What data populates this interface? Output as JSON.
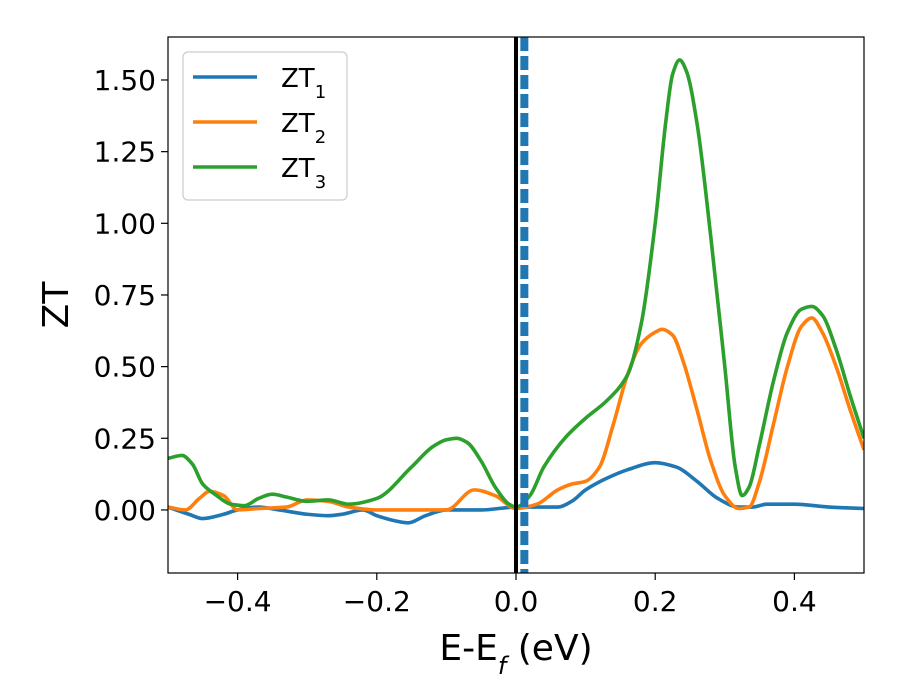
{
  "chart_data": {
    "type": "line",
    "title": "",
    "xlabel": {
      "main": "E-E",
      "sub": "f",
      "suffix": " (eV)"
    },
    "ylabel": "ZT",
    "xlim": [
      -0.5,
      0.5
    ],
    "ylim": [
      -0.22,
      1.65
    ],
    "xticks": [
      -0.4,
      -0.2,
      0.0,
      0.2,
      0.4
    ],
    "xtick_labels": [
      "−0.4",
      "−0.2",
      "0.0",
      "0.2",
      "0.4"
    ],
    "yticks": [
      0.0,
      0.25,
      0.5,
      0.75,
      1.0,
      1.25,
      1.5
    ],
    "ytick_labels": [
      "0.00",
      "0.25",
      "0.50",
      "0.75",
      "1.00",
      "1.25",
      "1.50"
    ],
    "grid": false,
    "legend_position": "top-left",
    "vertical_lines": [
      {
        "x": 0.0,
        "color": "#000000",
        "style": "solid"
      },
      {
        "x": 0.012,
        "color": "#1f77b4",
        "style": "dashed"
      }
    ],
    "series": [
      {
        "name": "ZT",
        "name_sub": "1",
        "color": "#1f77b4",
        "x": [
          -0.5,
          -0.47,
          -0.45,
          -0.42,
          -0.4,
          -0.37,
          -0.34,
          -0.3,
          -0.27,
          -0.25,
          -0.22,
          -0.2,
          -0.17,
          -0.155,
          -0.13,
          -0.1,
          -0.05,
          0.0,
          0.03,
          0.06,
          0.08,
          0.1,
          0.13,
          0.16,
          0.2,
          0.23,
          0.26,
          0.29,
          0.32,
          0.34,
          0.36,
          0.4,
          0.45,
          0.5
        ],
        "y": [
          0.01,
          -0.015,
          -0.03,
          -0.015,
          0.0,
          0.01,
          0.0,
          -0.015,
          -0.02,
          -0.015,
          0.0,
          -0.02,
          -0.04,
          -0.045,
          -0.02,
          0.0,
          0.0,
          0.01,
          0.01,
          0.01,
          0.03,
          0.07,
          0.11,
          0.14,
          0.165,
          0.15,
          0.1,
          0.04,
          0.01,
          0.01,
          0.02,
          0.02,
          0.01,
          0.005
        ]
      },
      {
        "name": "ZT",
        "name_sub": "2",
        "color": "#ff7f0e",
        "x": [
          -0.5,
          -0.475,
          -0.455,
          -0.44,
          -0.42,
          -0.4,
          -0.37,
          -0.33,
          -0.3,
          -0.27,
          -0.24,
          -0.2,
          -0.15,
          -0.1,
          -0.06,
          -0.03,
          0.0,
          0.03,
          0.06,
          0.08,
          0.1,
          0.12,
          0.14,
          0.16,
          0.18,
          0.2,
          0.21,
          0.225,
          0.24,
          0.26,
          0.28,
          0.3,
          0.32,
          0.335,
          0.35,
          0.37,
          0.39,
          0.41,
          0.425,
          0.44,
          0.46,
          0.48,
          0.5
        ],
        "y": [
          0.01,
          0.0,
          0.04,
          0.065,
          0.05,
          0.0,
          0.005,
          0.01,
          0.035,
          0.03,
          0.01,
          0.0,
          0.0,
          0.0,
          0.07,
          0.05,
          0.005,
          0.02,
          0.07,
          0.09,
          0.1,
          0.15,
          0.3,
          0.47,
          0.58,
          0.62,
          0.63,
          0.61,
          0.52,
          0.35,
          0.17,
          0.05,
          0.005,
          0.01,
          0.1,
          0.3,
          0.5,
          0.64,
          0.67,
          0.62,
          0.5,
          0.35,
          0.21
        ]
      },
      {
        "name": "ZT",
        "name_sub": "3",
        "color": "#2ca02c",
        "x": [
          -0.5,
          -0.48,
          -0.465,
          -0.45,
          -0.43,
          -0.41,
          -0.39,
          -0.37,
          -0.35,
          -0.33,
          -0.3,
          -0.27,
          -0.24,
          -0.2,
          -0.15,
          -0.12,
          -0.1,
          -0.085,
          -0.07,
          -0.05,
          -0.03,
          -0.01,
          0.0,
          0.02,
          0.04,
          0.07,
          0.1,
          0.13,
          0.16,
          0.18,
          0.2,
          0.215,
          0.225,
          0.235,
          0.245,
          0.26,
          0.28,
          0.3,
          0.315,
          0.325,
          0.335,
          0.35,
          0.37,
          0.39,
          0.41,
          0.425,
          0.44,
          0.46,
          0.48,
          0.5
        ],
        "y": [
          0.18,
          0.19,
          0.16,
          0.09,
          0.05,
          0.02,
          0.015,
          0.04,
          0.055,
          0.045,
          0.03,
          0.035,
          0.02,
          0.04,
          0.15,
          0.22,
          0.245,
          0.25,
          0.235,
          0.17,
          0.08,
          0.02,
          0.01,
          0.05,
          0.15,
          0.25,
          0.32,
          0.38,
          0.47,
          0.65,
          1.0,
          1.35,
          1.52,
          1.57,
          1.53,
          1.35,
          0.95,
          0.5,
          0.15,
          0.05,
          0.08,
          0.23,
          0.45,
          0.62,
          0.7,
          0.71,
          0.68,
          0.56,
          0.4,
          0.25
        ]
      }
    ]
  }
}
